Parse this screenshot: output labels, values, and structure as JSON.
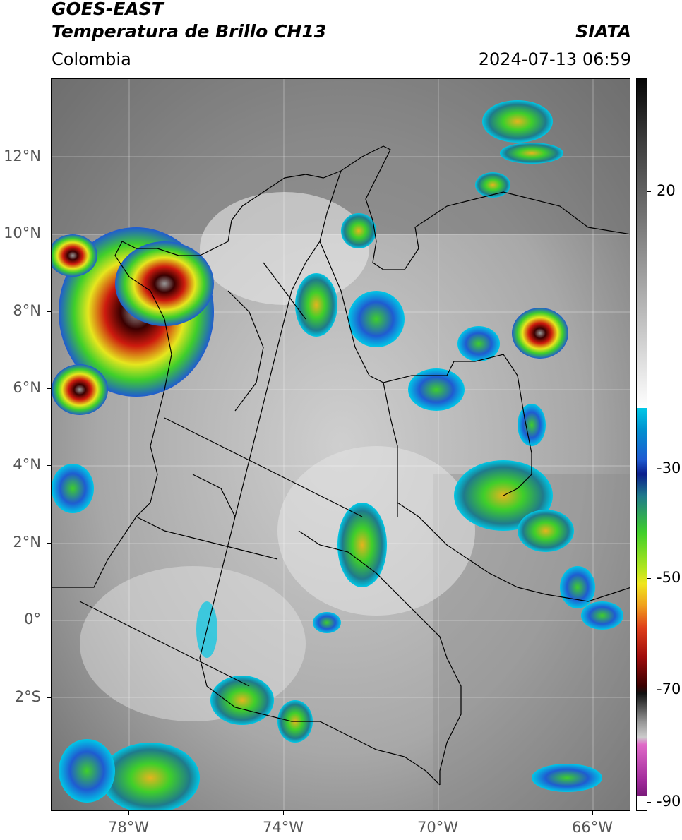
{
  "header": {
    "title_line1": "GOES-EAST",
    "title_line2": "Temperatura de Brillo CH13",
    "brand": "SIATA",
    "region": "Colombia",
    "timestamp": "2024-07-13 06:59"
  },
  "axes": {
    "lat_labels": [
      "12°N",
      "10°N",
      "8°N",
      "6°N",
      "4°N",
      "2°N",
      "0°",
      "2°S"
    ],
    "lon_labels": [
      "78°W",
      "74°W",
      "70°W",
      "66°W"
    ]
  },
  "colorbar": {
    "ticks": [
      "20",
      "-30",
      "-50",
      "-70",
      "-90"
    ]
  },
  "colors": {
    "ir_gray_dark": "#5a5a5a",
    "ir_gray_light": "#d9d9d9",
    "convective_green": "#3fcf2a",
    "convective_yellow": "#e6e61e",
    "convective_red": "#cc1a0e",
    "cold_blue": "#1f5bd1",
    "cyan": "#00c8e6",
    "border": "#000000"
  }
}
